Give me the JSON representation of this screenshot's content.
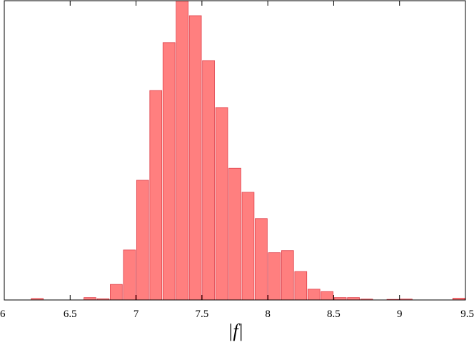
{
  "chart_data": {
    "type": "bar",
    "title": "",
    "xlabel": "|f|",
    "ylabel": "",
    "xlim": [
      6,
      9.5
    ],
    "ylim": [
      0,
      1.0
    ],
    "grid": false,
    "bar_color": "#ff7f7f",
    "bar_edge_color": "#e0404a",
    "x_ticks": [
      {
        "value": 6,
        "label": "6"
      },
      {
        "value": 6.5,
        "label": "6.5"
      },
      {
        "value": 7,
        "label": "7"
      },
      {
        "value": 7.5,
        "label": "7.5"
      },
      {
        "value": 8,
        "label": "8"
      },
      {
        "value": 8.5,
        "label": "8.5"
      },
      {
        "value": 9,
        "label": "9"
      },
      {
        "value": 9.5,
        "label": "9.5"
      }
    ],
    "bin_width": 0.1,
    "bins": [
      {
        "x": 6.2,
        "value": 0.005
      },
      {
        "x": 6.6,
        "value": 0.008
      },
      {
        "x": 6.7,
        "value": 0.004
      },
      {
        "x": 6.8,
        "value": 0.052
      },
      {
        "x": 6.9,
        "value": 0.167
      },
      {
        "x": 7.0,
        "value": 0.4
      },
      {
        "x": 7.1,
        "value": 0.7
      },
      {
        "x": 7.2,
        "value": 0.86
      },
      {
        "x": 7.3,
        "value": 1.0
      },
      {
        "x": 7.4,
        "value": 0.95
      },
      {
        "x": 7.5,
        "value": 0.8
      },
      {
        "x": 7.6,
        "value": 0.643
      },
      {
        "x": 7.7,
        "value": 0.44
      },
      {
        "x": 7.8,
        "value": 0.36
      },
      {
        "x": 7.9,
        "value": 0.272
      },
      {
        "x": 8.0,
        "value": 0.158
      },
      {
        "x": 8.1,
        "value": 0.165
      },
      {
        "x": 8.2,
        "value": 0.095
      },
      {
        "x": 8.3,
        "value": 0.036
      },
      {
        "x": 8.4,
        "value": 0.028
      },
      {
        "x": 8.5,
        "value": 0.008
      },
      {
        "x": 8.6,
        "value": 0.008
      },
      {
        "x": 8.7,
        "value": 0.003
      },
      {
        "x": 8.9,
        "value": 0.002
      },
      {
        "x": 9.0,
        "value": 0.003
      },
      {
        "x": 9.4,
        "value": 0.006
      }
    ]
  }
}
